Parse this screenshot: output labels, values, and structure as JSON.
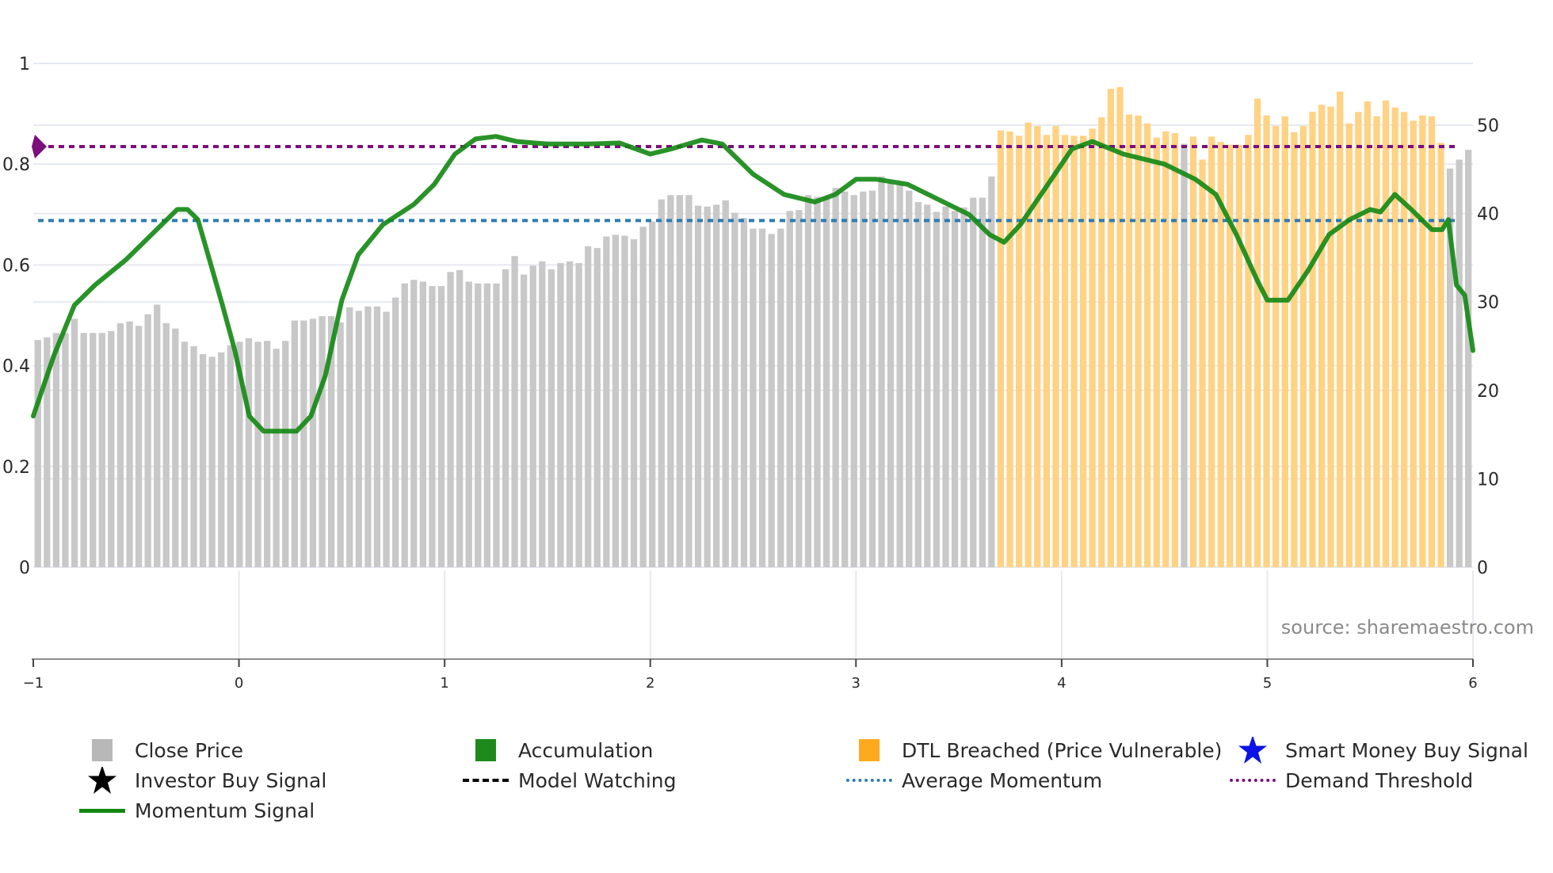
{
  "chart_data": {
    "type": "bar",
    "title": "",
    "xlabel": "",
    "ylabel_left": "",
    "ylabel_right": "",
    "left_axis": {
      "ticks": [
        "0",
        "0.2",
        "0.4",
        "0.6",
        "0.8",
        "1"
      ],
      "range": [
        0,
        1
      ]
    },
    "right_axis": {
      "ticks": [
        "0",
        "10",
        "20",
        "30",
        "40",
        "50"
      ],
      "range": [
        0,
        57.5
      ]
    },
    "x_axis": {
      "ticks": [
        "−1",
        "0",
        "1",
        "2",
        "3",
        "4",
        "5",
        "6"
      ],
      "range": [
        -1,
        6
      ]
    },
    "grid": true,
    "series": [
      {
        "name": "Close Price",
        "type": "bar",
        "axis": "right",
        "color": "#c8c8c8",
        "values": [
          25.7,
          26.0,
          26.5,
          26.5,
          28.1,
          26.5,
          26.5,
          26.5,
          26.7,
          27.6,
          27.8,
          27.3,
          28.6,
          29.7,
          27.6,
          27.0,
          25.5,
          25.0,
          24.1,
          23.8,
          24.3,
          25.1,
          25.5,
          25.9,
          25.5,
          25.6,
          24.7,
          25.6,
          27.9,
          27.9,
          28.1,
          28.4,
          28.4,
          27.7,
          29.4,
          29.0,
          29.5,
          29.5,
          28.9,
          30.5,
          32.1,
          32.5,
          32.3,
          31.8,
          31.8,
          33.4,
          33.6,
          32.3,
          32.1,
          32.1,
          32.1,
          33.7,
          35.2,
          33.1,
          34.1,
          34.6,
          33.7,
          34.4,
          34.6,
          34.4,
          36.3,
          36.1,
          37.4,
          37.6,
          37.5,
          37.1,
          38.5,
          39.1,
          41.6,
          42.1,
          42.1,
          42.1,
          40.9,
          40.8,
          41.0,
          41.5,
          40.1,
          39.5,
          38.3,
          38.3,
          37.7,
          38.3,
          40.3,
          40.4,
          42.1,
          41.9,
          41.9,
          42.9,
          42.5,
          42.1,
          42.5,
          42.6,
          44.2,
          43.5,
          43.3,
          42.6,
          41.3,
          41.0,
          40.2,
          40.8,
          40.3,
          40.7,
          41.8,
          41.8,
          44.2,
          49.4,
          49.3,
          48.8,
          50.3,
          49.9,
          48.9,
          49.9,
          48.9,
          48.8,
          48.8,
          49.6,
          50.9,
          54.1,
          54.3,
          51.2,
          51.1,
          50.2,
          48.6,
          49.3,
          49.1,
          47.9,
          48.7,
          46.1,
          48.7,
          48.1,
          47.8,
          47.8,
          48.9,
          53.0,
          51.1,
          49.9,
          51.0,
          49.2,
          49.9,
          51.5,
          52.3,
          52.1,
          53.8,
          50.2,
          51.5,
          52.7,
          51.0,
          52.8,
          52.0,
          51.5,
          50.5,
          51.1,
          51.0,
          48.0,
          45.1,
          46.1,
          47.2
        ],
        "dtl_breached_index_ranges": [
          [
            105,
            124
          ],
          [
            126,
            153
          ]
        ]
      },
      {
        "name": "Momentum Signal",
        "type": "line",
        "axis": "left",
        "color": "#128712",
        "points": [
          [
            -1.0,
            0.3
          ],
          [
            -0.9,
            0.42
          ],
          [
            -0.8,
            0.52
          ],
          [
            -0.7,
            0.56
          ],
          [
            -0.55,
            0.61
          ],
          [
            -0.4,
            0.67
          ],
          [
            -0.3,
            0.71
          ],
          [
            -0.25,
            0.71
          ],
          [
            -0.2,
            0.69
          ],
          [
            -0.15,
            0.62
          ],
          [
            -0.08,
            0.52
          ],
          [
            -0.02,
            0.43
          ],
          [
            0.05,
            0.3
          ],
          [
            0.12,
            0.27
          ],
          [
            0.2,
            0.27
          ],
          [
            0.28,
            0.27
          ],
          [
            0.35,
            0.3
          ],
          [
            0.42,
            0.38
          ],
          [
            0.5,
            0.53
          ],
          [
            0.58,
            0.62
          ],
          [
            0.7,
            0.68
          ],
          [
            0.85,
            0.72
          ],
          [
            0.95,
            0.76
          ],
          [
            1.05,
            0.82
          ],
          [
            1.15,
            0.85
          ],
          [
            1.25,
            0.855
          ],
          [
            1.35,
            0.845
          ],
          [
            1.5,
            0.84
          ],
          [
            1.7,
            0.84
          ],
          [
            1.85,
            0.842
          ],
          [
            2.0,
            0.82
          ],
          [
            2.1,
            0.83
          ],
          [
            2.25,
            0.848
          ],
          [
            2.35,
            0.84
          ],
          [
            2.5,
            0.78
          ],
          [
            2.65,
            0.74
          ],
          [
            2.8,
            0.725
          ],
          [
            2.9,
            0.74
          ],
          [
            3.0,
            0.77
          ],
          [
            3.1,
            0.77
          ],
          [
            3.25,
            0.76
          ],
          [
            3.4,
            0.73
          ],
          [
            3.55,
            0.7
          ],
          [
            3.65,
            0.66
          ],
          [
            3.72,
            0.645
          ],
          [
            3.8,
            0.68
          ],
          [
            3.95,
            0.77
          ],
          [
            4.05,
            0.83
          ],
          [
            4.15,
            0.845
          ],
          [
            4.3,
            0.82
          ],
          [
            4.5,
            0.8
          ],
          [
            4.65,
            0.77
          ],
          [
            4.75,
            0.74
          ],
          [
            4.85,
            0.66
          ],
          [
            4.95,
            0.57
          ],
          [
            5.0,
            0.53
          ],
          [
            5.1,
            0.53
          ],
          [
            5.2,
            0.59
          ],
          [
            5.3,
            0.66
          ],
          [
            5.4,
            0.69
          ],
          [
            5.5,
            0.71
          ],
          [
            5.55,
            0.705
          ],
          [
            5.62,
            0.74
          ],
          [
            5.7,
            0.71
          ],
          [
            5.8,
            0.67
          ],
          [
            5.85,
            0.67
          ],
          [
            5.88,
            0.69
          ],
          [
            5.92,
            0.56
          ],
          [
            5.96,
            0.54
          ],
          [
            6.0,
            0.43
          ]
        ]
      },
      {
        "name": "Average Momentum",
        "type": "hline",
        "axis": "left",
        "value": 0.688,
        "color": "#2e7bb0",
        "style": "dotted"
      },
      {
        "name": "Demand Threshold",
        "type": "hline",
        "axis": "left",
        "value": 0.835,
        "color": "#7b0f7b",
        "style": "dotted"
      }
    ],
    "legend": [
      {
        "label": "Close Price",
        "symbol": "square",
        "color": "#b8b8b8"
      },
      {
        "label": "Accumulation",
        "symbol": "square",
        "color": "#1e8a1e"
      },
      {
        "label": "DTL Breached (Price Vulnerable)",
        "symbol": "square",
        "color": "#ffaa1e"
      },
      {
        "label": "Smart Money Buy Signal",
        "symbol": "star",
        "color": "#0a14e6"
      },
      {
        "label": "Investor Buy Signal",
        "symbol": "star",
        "color": "#000000"
      },
      {
        "label": "Model Watching",
        "symbol": "dash",
        "color": "#000000"
      },
      {
        "label": "Average Momentum",
        "symbol": "dot",
        "color": "#2e7bb0"
      },
      {
        "label": "Demand Threshold",
        "symbol": "dot",
        "color": "#7b0f7b"
      },
      {
        "label": "Momentum Signal",
        "symbol": "line",
        "color": "#128712"
      }
    ],
    "annotations": [
      "source: sharemaestro.com"
    ],
    "legend_position": "bottom"
  },
  "colors": {
    "bar_gray": "#c8c8c8",
    "bar_orange": "#ffd284",
    "momentum": "#128712",
    "avg_momentum": "#2e7bb0",
    "demand_threshold": "#7b0f7b",
    "grid": "#e6e9ef",
    "axis": "#8c8c8c"
  },
  "watermark": "source: sharemaestro.com",
  "legend_labels": {
    "close_price": "Close Price",
    "accumulation": "Accumulation",
    "dtl_breached": "DTL Breached (Price Vulnerable)",
    "smart_money": "Smart Money Buy Signal",
    "investor_buy": "Investor Buy Signal",
    "model_watching": "Model Watching",
    "avg_momentum": "Average Momentum",
    "demand_threshold": "Demand Threshold",
    "momentum_signal": "Momentum Signal"
  }
}
